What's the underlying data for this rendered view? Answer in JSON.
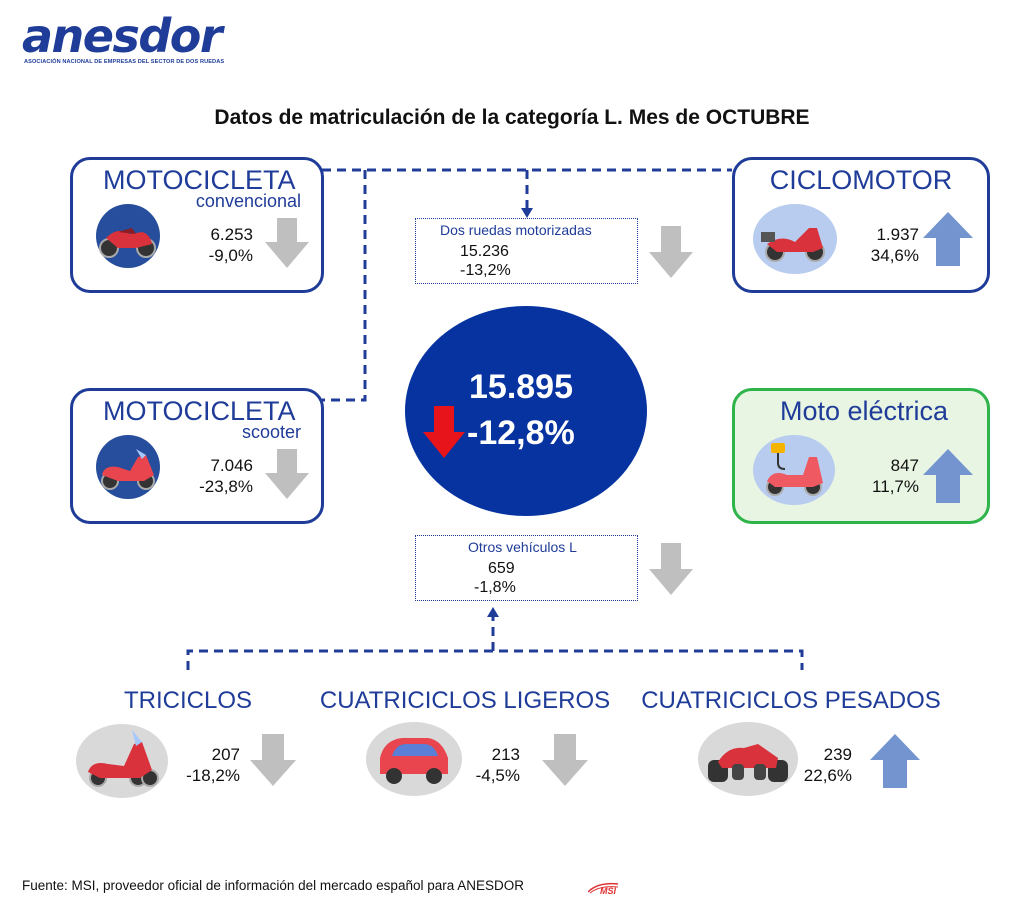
{
  "logo": {
    "name": "anesdor",
    "subtitle": "ASOCIACIÓN NACIONAL DE EMPRESAS DEL SECTOR DE DOS RUEDAS"
  },
  "title": "Datos de matriculación de la categoría L. Mes de OCTUBRE",
  "categories": {
    "moto_convencional": {
      "name": "MOTOCICLETA",
      "sub": "convencional",
      "units": "6.253",
      "change": "-9,0%",
      "trend": "down"
    },
    "moto_scooter": {
      "name": "MOTOCICLETA",
      "sub": "scooter",
      "units": "7.046",
      "change": "-23,8%",
      "trend": "down"
    },
    "ciclomotor": {
      "name": "CICLOMOTOR",
      "units": "1.937",
      "change": "34,6%",
      "trend": "up"
    },
    "moto_electrica": {
      "name": "Moto eléctrica",
      "units": "847",
      "change": "11,7%",
      "trend": "up"
    }
  },
  "dos_ruedas": {
    "label": "Dos ruedas motorizadas",
    "units": "15.236",
    "change": "-13,2%",
    "trend": "down"
  },
  "total": {
    "units": "15.895",
    "change": "-12,8%",
    "trend": "down"
  },
  "otros": {
    "label": "Otros vehículos L",
    "units": "659",
    "change": "-1,8%",
    "trend": "down"
  },
  "bottom": {
    "triciclos": {
      "name": "TRICICLOS",
      "units": "207",
      "change": "-18,2%",
      "trend": "down"
    },
    "cuatri_ligeros": {
      "name": "CUATRICICLOS LIGEROS",
      "units": "213",
      "change": "-4,5%",
      "trend": "down"
    },
    "cuatri_pesados": {
      "name": "CUATRICICLOS PESADOS",
      "units": "239",
      "change": "22,6%",
      "trend": "up"
    }
  },
  "footer": {
    "source": "Fuente: MSI, proveedor oficial de información del mercado español para ANESDOR",
    "msi_logo": "MSI"
  },
  "colors": {
    "brand_blue": "#1f3c99",
    "center_blue": "#0633a0",
    "electric_green": "#2db44a",
    "down_grey": "#bfbfbf",
    "up_blue": "#7394cf",
    "total_red": "#e8141b"
  }
}
